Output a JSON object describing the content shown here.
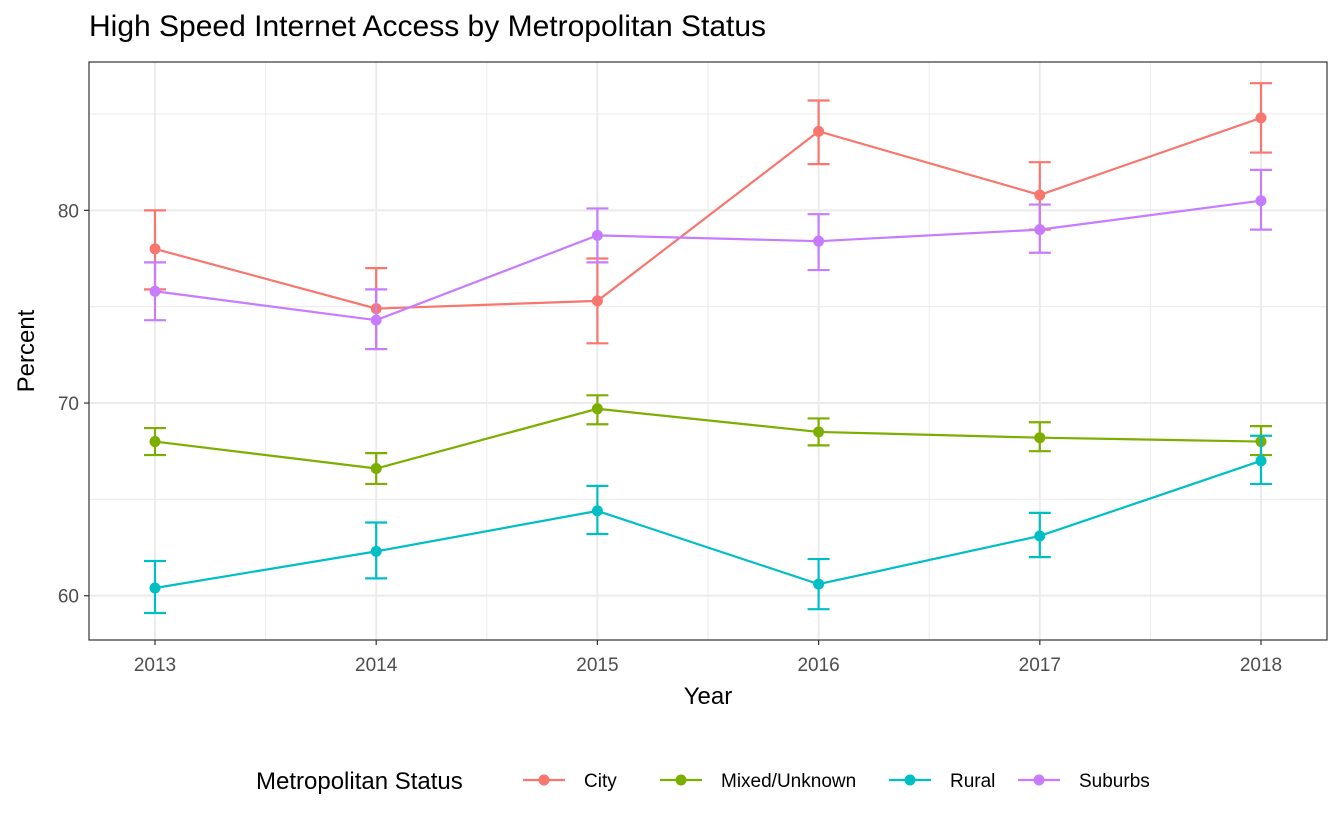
{
  "chart_data": {
    "type": "line",
    "title": "High Speed Internet Access by Metropolitan Status",
    "xlabel": "Year",
    "ylabel": "Percent",
    "categories": [
      "2013",
      "2014",
      "2015",
      "2016",
      "2017",
      "2018"
    ],
    "y_ticks": [
      60,
      70,
      80
    ],
    "ylim": [
      57.7,
      87.7
    ],
    "grid": true,
    "error_bars": true,
    "legend_title": "Metropolitan Status",
    "legend_position": "bottom",
    "series": [
      {
        "name": "City",
        "color": "#F8766D",
        "values": [
          78.0,
          74.9,
          75.3,
          84.1,
          80.8,
          84.8
        ],
        "lower": [
          75.9,
          72.8,
          73.1,
          82.4,
          79.0,
          83.0
        ],
        "upper": [
          80.0,
          77.0,
          77.5,
          85.7,
          82.5,
          86.6
        ]
      },
      {
        "name": "Mixed/Unknown",
        "color": "#7CAE00",
        "values": [
          68.0,
          66.6,
          69.7,
          68.5,
          68.2,
          68.0
        ],
        "lower": [
          67.3,
          65.8,
          68.9,
          67.8,
          67.5,
          67.3
        ],
        "upper": [
          68.7,
          67.4,
          70.4,
          69.2,
          69.0,
          68.8
        ]
      },
      {
        "name": "Rural",
        "color": "#00BFC4",
        "values": [
          60.4,
          62.3,
          64.4,
          60.6,
          63.1,
          67.0
        ],
        "lower": [
          59.1,
          60.9,
          63.2,
          59.3,
          62.0,
          65.8
        ],
        "upper": [
          61.8,
          63.8,
          65.7,
          61.9,
          64.3,
          68.3
        ]
      },
      {
        "name": "Suburbs",
        "color": "#C77CFF",
        "values": [
          75.8,
          74.3,
          78.7,
          78.4,
          79.0,
          80.5
        ],
        "lower": [
          74.3,
          72.8,
          77.3,
          76.9,
          77.8,
          79.0
        ],
        "upper": [
          77.3,
          75.9,
          80.1,
          79.8,
          80.3,
          82.1
        ]
      }
    ]
  }
}
